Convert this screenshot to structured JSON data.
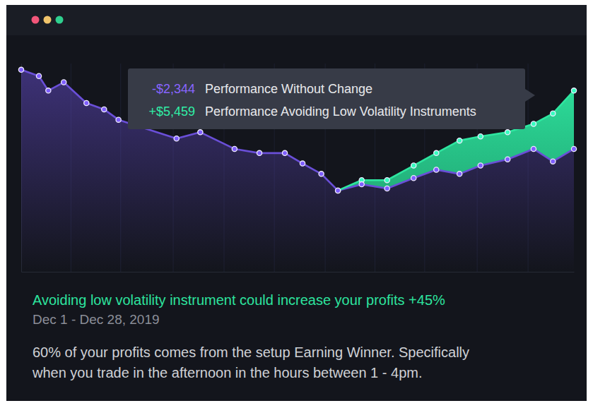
{
  "chart_data": {
    "type": "area",
    "title": "Avoiding low volatility instrument could increase your profits +45%",
    "subtitle": "Dec 1 - Dec 28, 2019",
    "annotations": [
      "60% of your profits comes from the setup Earning Winner. Specifically",
      "when you trade in the afternoon in the hours between 1 - 4pm."
    ],
    "x": [
      0,
      3.2,
      4.9,
      7.7,
      11.8,
      15,
      17.6,
      28.1,
      32.4,
      38.6,
      43.1,
      47.7,
      50.9,
      54.3,
      57.3,
      61.6,
      66.2,
      71,
      75.1,
      79.3,
      83.1,
      88,
      92.7,
      96.2,
      100
    ],
    "series": [
      {
        "name": "Performance Without Change",
        "total": "-$2,344",
        "color": "#6a4fd8",
        "marker": "circle",
        "values": [
          97,
          94,
          87,
          91,
          81,
          78,
          73,
          64,
          67,
          59,
          57,
          57,
          52,
          47,
          39,
          42,
          40,
          45,
          49,
          47,
          51,
          54,
          59,
          53,
          59
        ]
      },
      {
        "name": "Performance Avoiding Low Volatility Instruments",
        "total": "+$5,459",
        "color": "#2ee6a0",
        "marker": "circle",
        "values": [
          null,
          null,
          null,
          null,
          null,
          null,
          null,
          null,
          null,
          null,
          null,
          null,
          null,
          null,
          39,
          44,
          44,
          51,
          57,
          63,
          65,
          67,
          71,
          76,
          87
        ]
      }
    ],
    "xlim": [
      0,
      100
    ],
    "xticks": [
      9,
      18,
      27.5,
      36.7,
      45.8,
      55,
      64,
      73,
      82.5,
      91.7
    ],
    "ylim": [
      0,
      100
    ],
    "yticks": [
      0,
      100
    ],
    "grid": "x",
    "tick_labels": false
  }
}
